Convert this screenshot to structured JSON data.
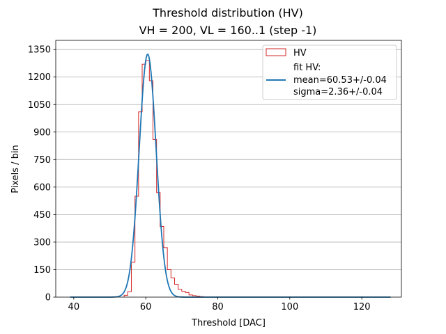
{
  "chart_data": {
    "type": "histogram",
    "title": "Threshold distribution (HV)",
    "subtitle": "VH = 200, VL = 160..1 (step -1)",
    "xlabel": "Threshold [DAC]",
    "ylabel": "Pixels / bin",
    "xlim": [
      35,
      131
    ],
    "ylim": [
      0,
      1400
    ],
    "xticks": [
      "40",
      "60",
      "80",
      "100",
      "120"
    ],
    "xtick_values": [
      40,
      60,
      80,
      100,
      120
    ],
    "yticks": [
      "0",
      "150",
      "300",
      "450",
      "600",
      "750",
      "900",
      "1050",
      "1200",
      "1350"
    ],
    "ytick_values": [
      0,
      150,
      300,
      450,
      600,
      750,
      900,
      1050,
      1200,
      1350
    ],
    "grid": "horizontal",
    "legend_position": "top-right",
    "colors": {
      "histogram": "#d62728",
      "fit": "#1f77b4"
    },
    "series": [
      {
        "name": "HV",
        "kind": "step",
        "bin_edges": [
          54,
          55,
          56,
          57,
          58,
          59,
          60,
          61,
          62,
          63,
          64,
          65,
          66,
          67,
          68,
          69,
          70,
          71,
          72,
          73,
          74,
          75,
          76
        ],
        "counts": [
          10,
          30,
          190,
          550,
          1010,
          1270,
          1290,
          1180,
          860,
          570,
          385,
          270,
          150,
          105,
          70,
          42,
          32,
          25,
          12,
          8,
          5,
          3
        ]
      },
      {
        "name": "fit HV:\nmean=60.53+/-0.04\nsigma=2.36+/-0.04",
        "kind": "gaussian",
        "amplitude": 1325,
        "mean": 60.53,
        "sigma": 2.36,
        "x_range": [
          39,
          128
        ]
      }
    ],
    "legend": [
      {
        "label": "HV"
      },
      {
        "label_lines": [
          "fit HV:",
          "mean=60.53+/-0.04",
          "sigma=2.36+/-0.04"
        ]
      }
    ]
  }
}
